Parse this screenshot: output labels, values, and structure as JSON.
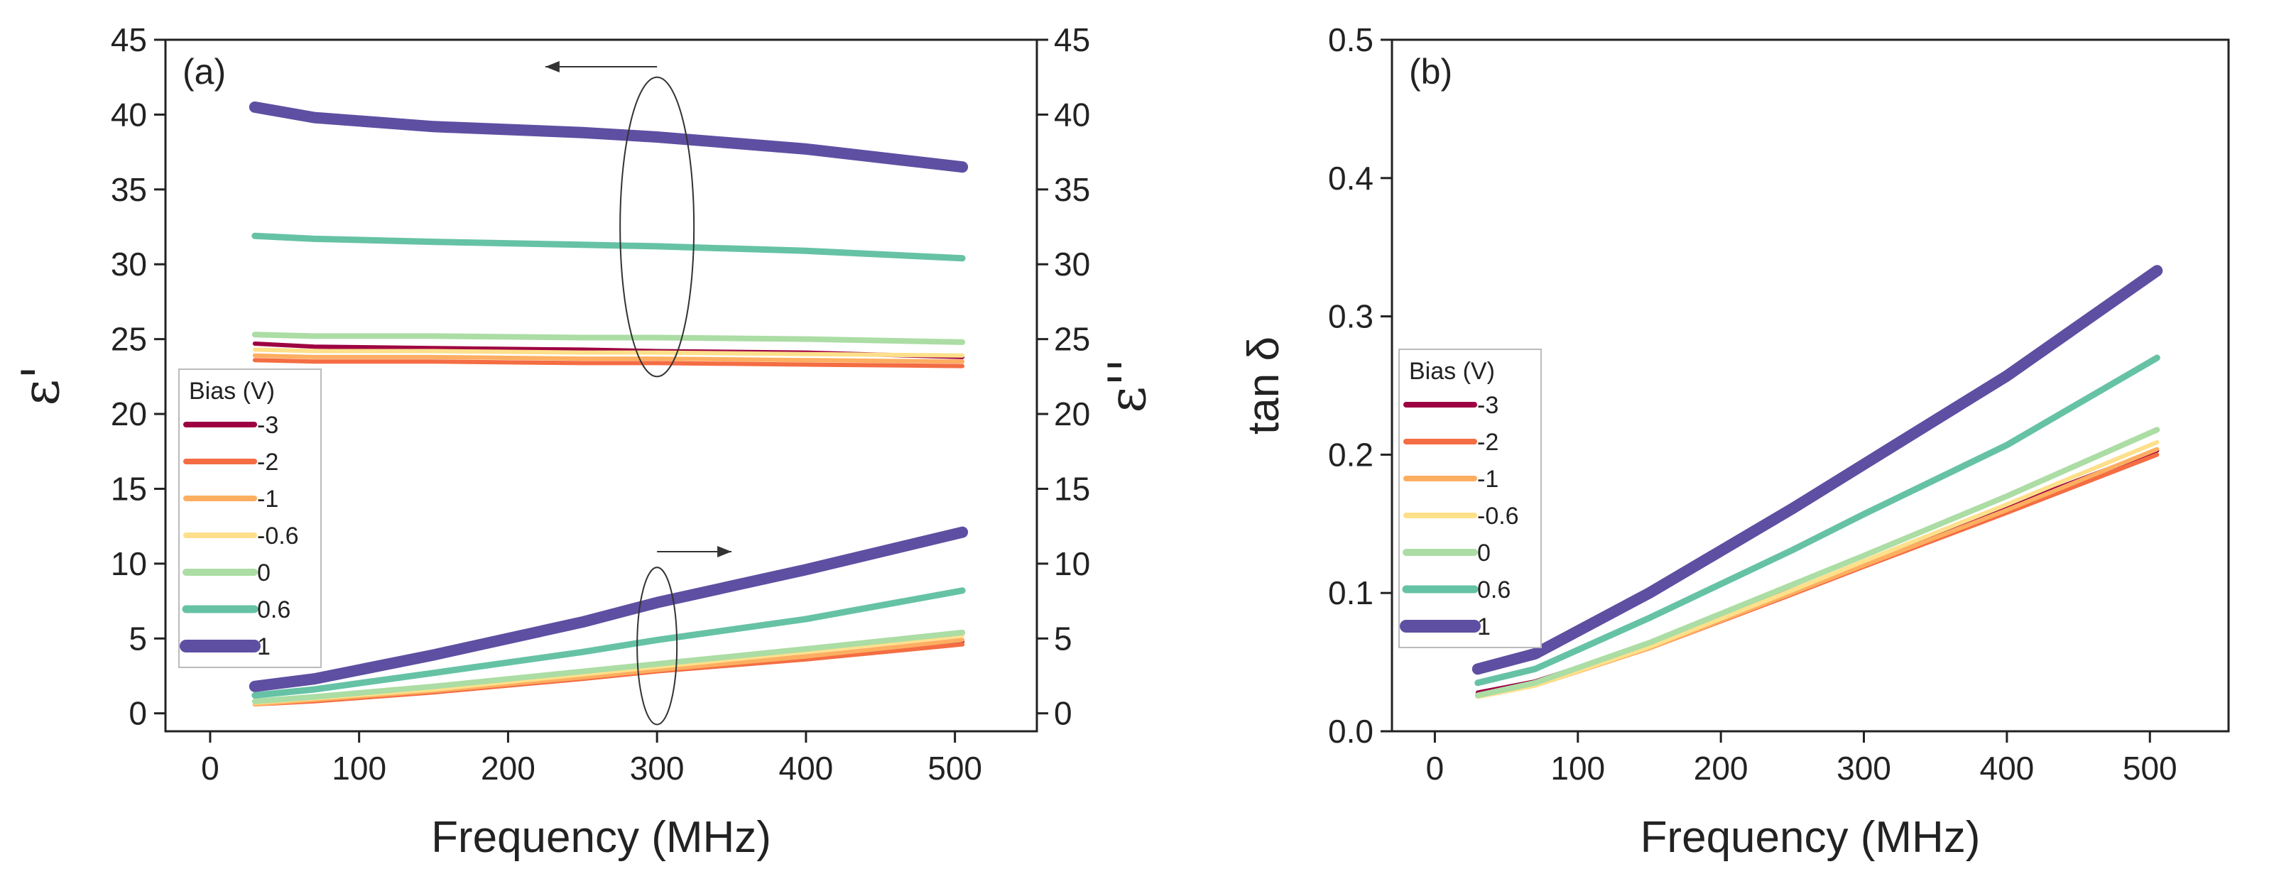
{
  "chart_data": [
    {
      "panel": "(a)",
      "type": "line",
      "xlabel": "Frequency (MHz)",
      "ylabel_left": "ε'",
      "ylabel_right": "ε''",
      "xlim": [
        -30,
        555
      ],
      "ylim": [
        -1.2,
        45
      ],
      "xticks": [
        0,
        100,
        200,
        300,
        400,
        500
      ],
      "yticks": [
        0,
        5,
        10,
        15,
        20,
        25,
        30,
        35,
        40,
        45
      ],
      "legend_title": "Bias (V)",
      "x": [
        30,
        70,
        150,
        250,
        300,
        400,
        505
      ],
      "real_series": [
        {
          "name": "-3",
          "color": "#9e0142",
          "values": [
            24.7,
            24.5,
            24.4,
            24.3,
            24.2,
            24.1,
            23.8
          ]
        },
        {
          "name": "-2",
          "color": "#f46d43",
          "values": [
            23.6,
            23.5,
            23.5,
            23.4,
            23.4,
            23.3,
            23.2
          ]
        },
        {
          "name": "-1",
          "color": "#fdae61",
          "values": [
            23.9,
            23.8,
            23.8,
            23.7,
            23.7,
            23.6,
            23.5
          ]
        },
        {
          "name": "-0.6",
          "color": "#fee08b",
          "values": [
            24.3,
            24.2,
            24.2,
            24.1,
            24.1,
            24.0,
            23.9
          ]
        },
        {
          "name": "0",
          "color": "#abdda4",
          "values": [
            25.3,
            25.2,
            25.2,
            25.1,
            25.1,
            25.0,
            24.8
          ]
        },
        {
          "name": "0.6",
          "color": "#66c2a5",
          "values": [
            31.9,
            31.7,
            31.5,
            31.3,
            31.2,
            30.9,
            30.4
          ]
        },
        {
          "name": "1",
          "color": "#5e4fa2",
          "values": [
            40.5,
            39.8,
            39.2,
            38.8,
            38.5,
            37.7,
            36.5
          ]
        }
      ],
      "imag_series": [
        {
          "name": "-3",
          "color": "#9e0142",
          "values": [
            0.7,
            0.9,
            1.5,
            2.5,
            2.9,
            3.8,
            4.8
          ]
        },
        {
          "name": "-2",
          "color": "#f46d43",
          "values": [
            0.6,
            0.8,
            1.4,
            2.3,
            2.8,
            3.6,
            4.6
          ]
        },
        {
          "name": "-1",
          "color": "#fdae61",
          "values": [
            0.6,
            0.9,
            1.5,
            2.4,
            2.9,
            3.8,
            4.9
          ]
        },
        {
          "name": "-0.6",
          "color": "#fee08b",
          "values": [
            0.7,
            1.0,
            1.6,
            2.6,
            3.1,
            4.1,
            5.2
          ]
        },
        {
          "name": "0",
          "color": "#abdda4",
          "values": [
            0.8,
            1.1,
            1.8,
            2.8,
            3.3,
            4.3,
            5.4
          ]
        },
        {
          "name": "0.6",
          "color": "#66c2a5",
          "values": [
            1.2,
            1.6,
            2.7,
            4.1,
            4.9,
            6.3,
            8.2
          ]
        },
        {
          "name": "1",
          "color": "#5e4fa2",
          "values": [
            1.8,
            2.3,
            3.9,
            6.1,
            7.4,
            9.6,
            12.1
          ]
        }
      ]
    },
    {
      "panel": "(b)",
      "type": "line",
      "xlabel": "Frequency (MHz)",
      "ylabel": "tan δ",
      "xlim": [
        -30,
        555
      ],
      "ylim": [
        0,
        0.5
      ],
      "xticks": [
        0,
        100,
        200,
        300,
        400,
        500
      ],
      "yticks": [
        "0.0",
        "0.1",
        "0.2",
        "0.3",
        "0.4",
        "0.5"
      ],
      "legend_title": "Bias (V)",
      "x": [
        30,
        70,
        150,
        250,
        300,
        400,
        505
      ],
      "series": [
        {
          "name": "-3",
          "color": "#9e0142",
          "values": [
            0.028,
            0.036,
            0.063,
            0.102,
            0.122,
            0.162,
            0.203
          ]
        },
        {
          "name": "-2",
          "color": "#f46d43",
          "values": [
            0.026,
            0.034,
            0.06,
            0.099,
            0.119,
            0.158,
            0.2
          ]
        },
        {
          "name": "-1",
          "color": "#fdae61",
          "values": [
            0.025,
            0.033,
            0.06,
            0.1,
            0.12,
            0.16,
            0.204
          ]
        },
        {
          "name": "-0.6",
          "color": "#fee08b",
          "values": [
            0.025,
            0.033,
            0.061,
            0.102,
            0.123,
            0.164,
            0.209
          ]
        },
        {
          "name": "0",
          "color": "#abdda4",
          "values": [
            0.026,
            0.035,
            0.064,
            0.106,
            0.127,
            0.17,
            0.218
          ]
        },
        {
          "name": "0.6",
          "color": "#66c2a5",
          "values": [
            0.035,
            0.045,
            0.082,
            0.131,
            0.157,
            0.207,
            0.27
          ]
        },
        {
          "name": "1",
          "color": "#5e4fa2",
          "values": [
            0.045,
            0.056,
            0.1,
            0.161,
            0.193,
            0.257,
            0.333
          ]
        }
      ]
    }
  ]
}
